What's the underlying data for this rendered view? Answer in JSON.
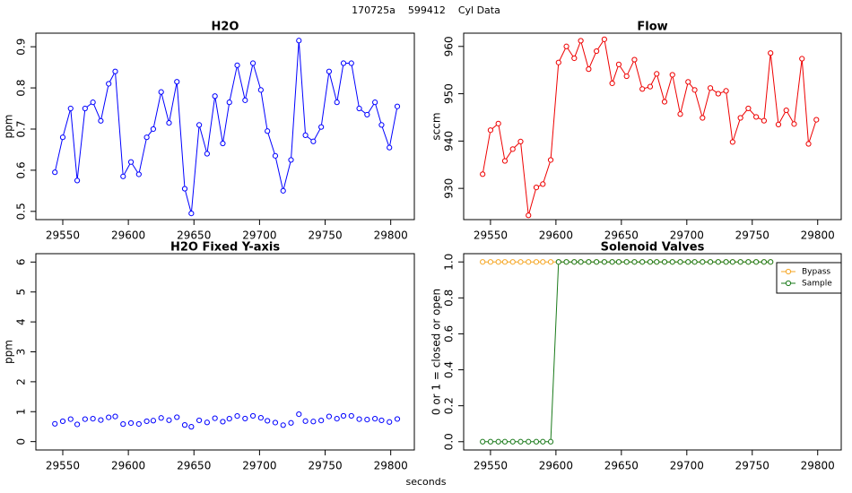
{
  "title": "170725a    599412    Cyl Data",
  "xlabel": "seconds",
  "chart_data": [
    {
      "type": "line",
      "title": "H2O",
      "ylabel": "ppm",
      "x": [
        29544,
        29550,
        29556,
        29561,
        29567,
        29573,
        29579,
        29585,
        29590,
        29596,
        29602,
        29608,
        29614,
        29619,
        29625,
        29631,
        29637,
        29643,
        29648,
        29654,
        29660,
        29666,
        29672,
        29677,
        29683,
        29689,
        29695,
        29701,
        29706,
        29712,
        29718,
        29724,
        29730,
        29735,
        29741,
        29747,
        29753,
        29759,
        29764,
        29770,
        29776,
        29782,
        29788,
        29793,
        29799,
        29805
      ],
      "series": [
        {
          "color": "#0000ff",
          "values": [
            0.595,
            0.68,
            0.75,
            0.575,
            0.75,
            0.765,
            0.72,
            0.81,
            0.84,
            0.585,
            0.62,
            0.59,
            0.68,
            0.7,
            0.79,
            0.715,
            0.815,
            0.555,
            0.495,
            0.71,
            0.64,
            0.78,
            0.665,
            0.765,
            0.855,
            0.77,
            0.86,
            0.795,
            0.695,
            0.635,
            0.55,
            0.625,
            0.915,
            0.685,
            0.67,
            0.705,
            0.84,
            0.765,
            0.86,
            0.86,
            0.75,
            0.735,
            0.765,
            0.71,
            0.655,
            0.755
          ]
        }
      ],
      "xlim": [
        29529.5,
        29818
      ],
      "xticks": [
        29550,
        29600,
        29650,
        29700,
        29750,
        29800
      ],
      "ylim": [
        0.48,
        0.933
      ],
      "yticks": [
        0.5,
        0.6,
        0.7,
        0.8,
        0.9
      ]
    },
    {
      "type": "line",
      "title": "Flow",
      "ylabel": "sccm",
      "x": [
        29544,
        29550,
        29556,
        29561,
        29567,
        29573,
        29579,
        29585,
        29590,
        29596,
        29602,
        29608,
        29614,
        29619,
        29625,
        29631,
        29637,
        29643,
        29648,
        29654,
        29660,
        29666,
        29672,
        29677,
        29683,
        29689,
        29695,
        29701,
        29706,
        29712,
        29718,
        29724,
        29730,
        29735,
        29741,
        29747,
        29753,
        29759,
        29764,
        29770,
        29776,
        29782,
        29788,
        29793,
        29799
      ],
      "series": [
        {
          "color": "#ee0000",
          "values": [
            933,
            942.3,
            943.7,
            935.8,
            938.3,
            939.9,
            924.3,
            930.2,
            930.9,
            936,
            956.6,
            960,
            957.5,
            961.2,
            955.2,
            959,
            961.5,
            952.2,
            956.2,
            953.7,
            957.2,
            951,
            951.5,
            954.2,
            948.3,
            954,
            945.7,
            952.5,
            950.8,
            944.9,
            951.2,
            950,
            950.6,
            939.8,
            944.9,
            946.9,
            945.1,
            944.3,
            958.6,
            943.5,
            946.5,
            943.6,
            957.4,
            939.4,
            944.5
          ]
        }
      ],
      "xlim": [
        29529.5,
        29818
      ],
      "xticks": [
        29550,
        29600,
        29650,
        29700,
        29750,
        29800
      ],
      "ylim": [
        923.4,
        962.8
      ],
      "yticks": [
        930,
        940,
        950,
        960
      ]
    },
    {
      "type": "line",
      "title": "H2O Fixed Y-axis",
      "ylabel": "ppm",
      "points_only": true,
      "x": [
        29544,
        29550,
        29556,
        29561,
        29567,
        29573,
        29579,
        29585,
        29590,
        29596,
        29602,
        29608,
        29614,
        29619,
        29625,
        29631,
        29637,
        29643,
        29648,
        29654,
        29660,
        29666,
        29672,
        29677,
        29683,
        29689,
        29695,
        29701,
        29706,
        29712,
        29718,
        29724,
        29730,
        29735,
        29741,
        29747,
        29753,
        29759,
        29764,
        29770,
        29776,
        29782,
        29788,
        29793,
        29799,
        29805
      ],
      "series": [
        {
          "color": "#0000ff",
          "values": [
            0.595,
            0.68,
            0.75,
            0.575,
            0.75,
            0.765,
            0.72,
            0.81,
            0.84,
            0.585,
            0.62,
            0.59,
            0.68,
            0.7,
            0.79,
            0.715,
            0.815,
            0.555,
            0.495,
            0.71,
            0.64,
            0.78,
            0.665,
            0.765,
            0.855,
            0.77,
            0.86,
            0.795,
            0.695,
            0.635,
            0.55,
            0.625,
            0.915,
            0.685,
            0.67,
            0.705,
            0.84,
            0.765,
            0.86,
            0.86,
            0.75,
            0.735,
            0.765,
            0.71,
            0.655,
            0.755
          ]
        }
      ],
      "xlim": [
        29529.5,
        29818
      ],
      "xticks": [
        29550,
        29600,
        29650,
        29700,
        29750,
        29800
      ],
      "ylim": [
        -0.28,
        6.28
      ],
      "yticks": [
        0,
        1,
        2,
        3,
        4,
        5,
        6
      ]
    },
    {
      "type": "line",
      "title": "Solenoid Valves",
      "ylabel": "0 or 1 = closed or open",
      "legend": "topright",
      "x": [
        29544,
        29550,
        29556,
        29561,
        29567,
        29573,
        29579,
        29585,
        29590,
        29596,
        29602,
        29608,
        29614,
        29619,
        29625,
        29631,
        29637,
        29643,
        29648,
        29654,
        29660,
        29666,
        29672,
        29677,
        29683,
        29689,
        29695,
        29701,
        29706,
        29712,
        29718,
        29724,
        29730,
        29735,
        29741,
        29747,
        29753,
        29759,
        29764
      ],
      "series": [
        {
          "name": "Bypass",
          "color": "#f5a623",
          "values": [
            1,
            1,
            1,
            1,
            1,
            1,
            1,
            1,
            1,
            1,
            1,
            1,
            1,
            1,
            1,
            1,
            1,
            1,
            1,
            1,
            1,
            1,
            1,
            1,
            1,
            1,
            1,
            1,
            1,
            1,
            1,
            1,
            1,
            1,
            1,
            1,
            1,
            1,
            1
          ]
        },
        {
          "name": "Sample",
          "color": "#1a7a1a",
          "values": [
            0,
            0,
            0,
            0,
            0,
            0,
            0,
            0,
            0,
            0,
            1,
            1,
            1,
            1,
            1,
            1,
            1,
            1,
            1,
            1,
            1,
            1,
            1,
            1,
            1,
            1,
            1,
            1,
            1,
            1,
            1,
            1,
            1,
            1,
            1,
            1,
            1,
            1,
            1
          ]
        }
      ],
      "xlim": [
        29529.5,
        29818
      ],
      "xticks": [
        29550,
        29600,
        29650,
        29700,
        29750,
        29800
      ],
      "ylim": [
        -0.046,
        1.046
      ],
      "yticks": [
        {
          "value": 0,
          "label": "0.0"
        },
        {
          "value": 0.2,
          "label": "0.2"
        },
        {
          "value": 0.4,
          "label": "0.4"
        },
        {
          "value": 0.6,
          "label": "0.6"
        },
        {
          "value": 0.8,
          "label": "0.8"
        },
        {
          "value": 1,
          "label": "1.0"
        }
      ]
    }
  ]
}
